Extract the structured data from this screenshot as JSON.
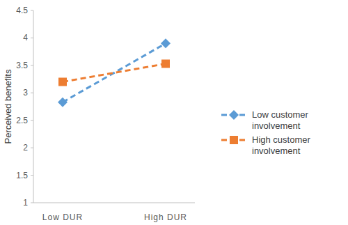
{
  "chart_data": {
    "type": "line",
    "y_label": "Perceived benefits",
    "categories": [
      "Low DUR",
      "High DUR"
    ],
    "series": [
      {
        "name": "Low customer involvement",
        "color": "#5b9bd5",
        "marker": "diamond",
        "line_style": "dashed",
        "values": [
          2.83,
          3.9
        ]
      },
      {
        "name": "High customer involvement",
        "color": "#ed7d31",
        "marker": "square",
        "line_style": "dashed",
        "values": [
          3.2,
          3.53
        ]
      }
    ],
    "ylim": [
      1,
      4.5
    ],
    "yticks": [
      1,
      1.5,
      2,
      2.5,
      3,
      3.5,
      4,
      4.5
    ],
    "grid": false,
    "legend": "right"
  }
}
